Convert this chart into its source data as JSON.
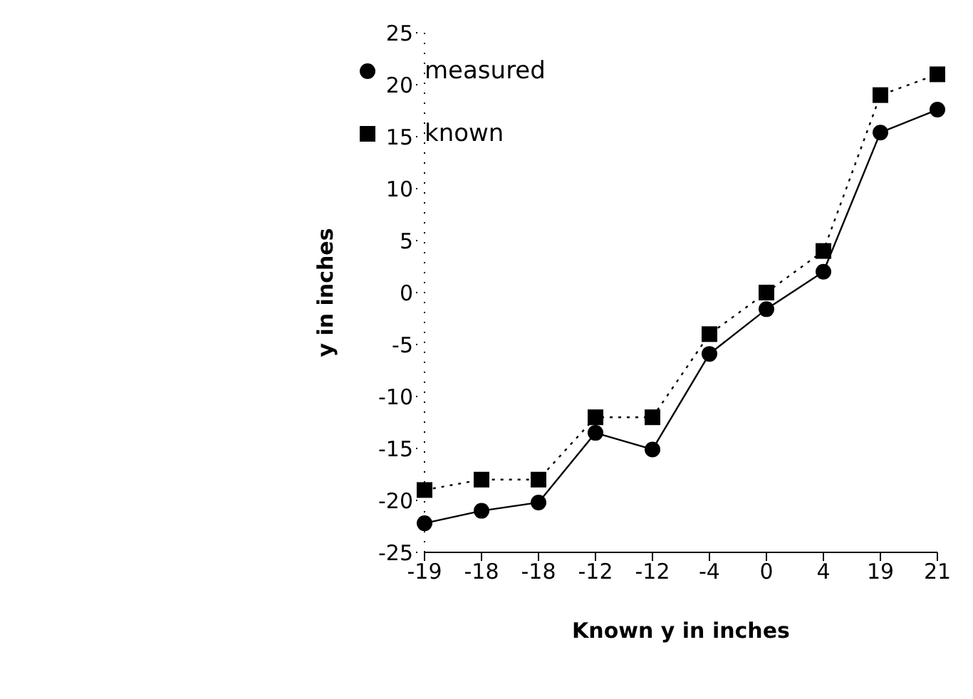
{
  "chart_data": {
    "type": "line",
    "xlabel": "Known y in inches",
    "ylabel": "y in inches",
    "categories": [
      "-19",
      "-18",
      "-18",
      "-12",
      "-12",
      "-4",
      "0",
      "4",
      "19",
      "21"
    ],
    "series": [
      {
        "name": "measured",
        "color": "#000000",
        "marker": "circle",
        "line_style": "solid",
        "values": [
          -22.2,
          -21,
          -20.2,
          -13.5,
          -15.1,
          -5.9,
          -1.6,
          2,
          15.4,
          17.6
        ]
      },
      {
        "name": "known",
        "color": "#000000",
        "marker": "square",
        "line_style": "dotted",
        "values": [
          -19,
          -18,
          -18,
          -12,
          -12,
          -4,
          0,
          4,
          19,
          21
        ]
      }
    ],
    "ylim": [
      -25,
      25
    ],
    "yticks": [
      -25,
      -20,
      -15,
      -10,
      -5,
      0,
      5,
      10,
      15,
      20,
      25
    ],
    "grid": false,
    "legend": "top left"
  }
}
